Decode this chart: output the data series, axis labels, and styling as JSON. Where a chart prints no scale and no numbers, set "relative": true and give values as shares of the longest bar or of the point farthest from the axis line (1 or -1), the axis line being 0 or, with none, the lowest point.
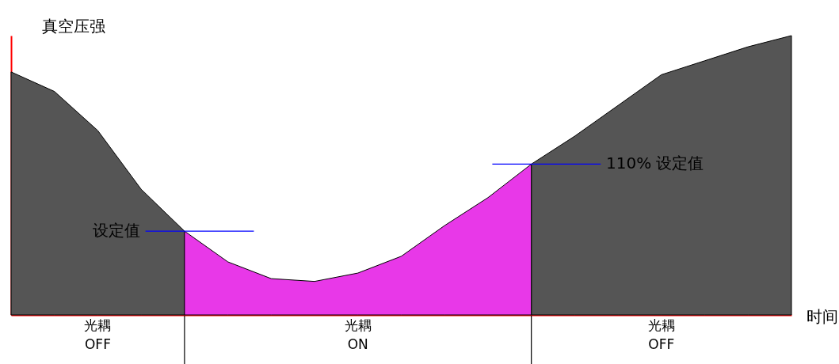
{
  "chart_data": {
    "type": "area",
    "relative": true,
    "xlabel": "时间",
    "ylabel": "真空压强",
    "categories": [
      null,
      null,
      null,
      null,
      null,
      null,
      null,
      null,
      null,
      null,
      null,
      null,
      null,
      null,
      null,
      null,
      null,
      null,
      null
    ],
    "series": [
      {
        "color": "#555555",
        "values": [
          0.87,
          0.8,
          0.66,
          0.45,
          0.3,
          null,
          null,
          null,
          null,
          null,
          null,
          null,
          0.54,
          0.64,
          0.75,
          0.86,
          0.91,
          0.96,
          1.0
        ]
      },
      {
        "color": "#e838e8",
        "values": [
          null,
          null,
          null,
          null,
          0.3,
          0.19,
          0.13,
          0.12,
          0.15,
          0.21,
          0.32,
          0.42,
          0.54,
          null,
          null,
          null,
          null,
          null,
          null
        ]
      }
    ],
    "ref_lines": [
      {
        "axis": "y",
        "value": 0.3,
        "label": "设定值",
        "color": "#0000ff"
      },
      {
        "axis": "y",
        "value": 0.54,
        "label": "110% 设定值",
        "color": "#0000ff"
      }
    ],
    "annotations": [
      "光耦\nOFF",
      "光耦\nON",
      "光耦\nOFF"
    ]
  }
}
